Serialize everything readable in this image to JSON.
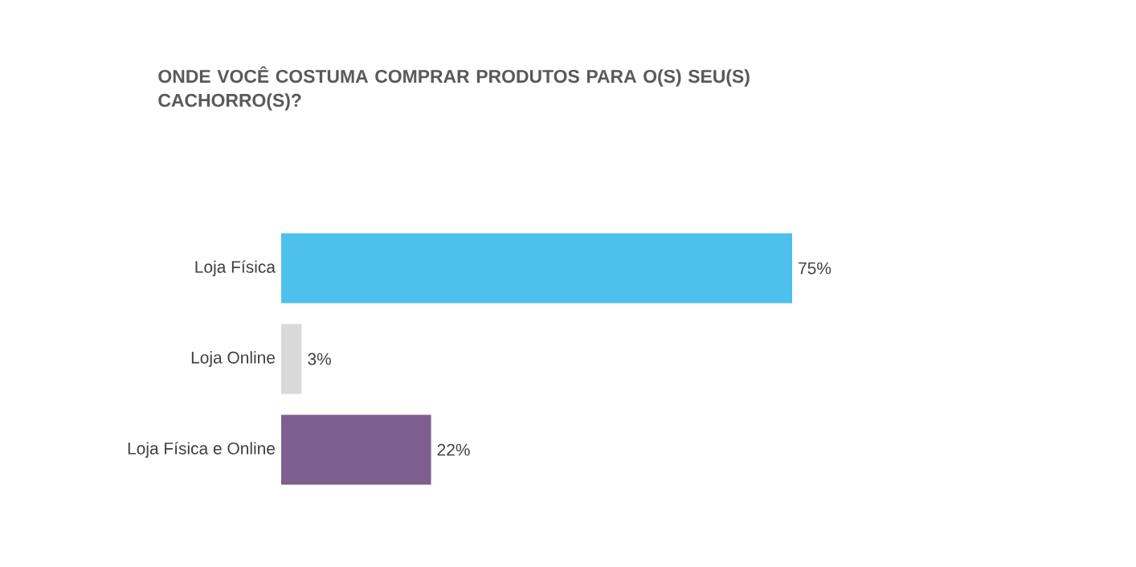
{
  "chart_data": {
    "type": "bar",
    "orientation": "horizontal",
    "title": "ONDE VOCÊ COSTUMA COMPRAR PRODUTOS PARA O(S) SEU(S) CACHORRO(S)?",
    "categories": [
      "Loja Física",
      "Loja Online",
      "Loja Física e Online"
    ],
    "values": [
      75,
      3,
      22
    ],
    "colors": [
      "#4dc0eb",
      "#d9d9d9",
      "#7f5f8f"
    ],
    "value_labels": [
      "75%",
      "3%",
      "22%"
    ]
  }
}
